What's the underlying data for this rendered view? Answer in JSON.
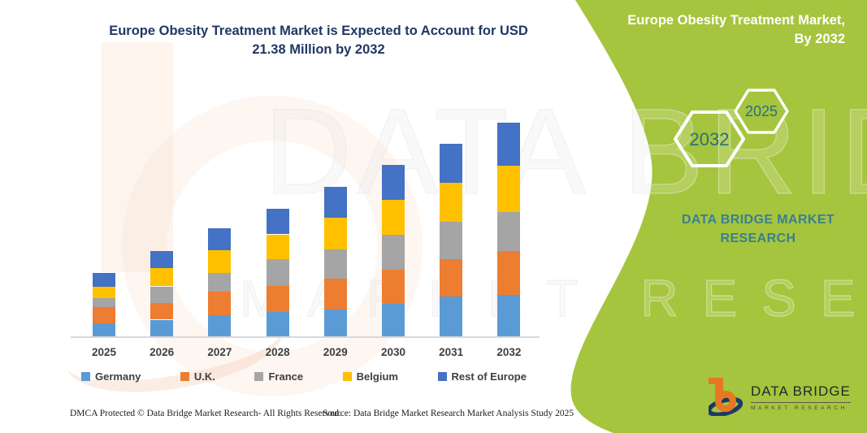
{
  "accent_green": "#a5c53e",
  "chart_title": {
    "line1": "Europe Obesity Treatment Market is Expected to Account for USD",
    "line2": "21.38 Million by 2032"
  },
  "side_panel": {
    "heading_line1": "Europe Obesity Treatment Market,",
    "heading_line2": "By 2032",
    "hexagon_front_label": "2032",
    "hexagon_back_label": "2025",
    "brand_line1": "DATA BRIDGE MARKET",
    "brand_line2": "RESEARCH"
  },
  "logo": {
    "name": "DATA BRIDGE",
    "tagline": "MARKET RESEARCH"
  },
  "watermark": {
    "line1": "DATA BRIDGE",
    "line2": "MARKET RESEARCH"
  },
  "footer": {
    "dmca": "DMCA Protected © Data Bridge Market Research-  All Rights Reserved.",
    "source": "Source: Data Bridge Market Research  Market Analysis Study 2025"
  },
  "chart_data": {
    "type": "bar",
    "stacked": true,
    "title": "Europe Obesity Treatment Market is Expected to Account for USD 21.38 Million by 2032",
    "unit": "USD Million",
    "categories": [
      "2025",
      "2026",
      "2027",
      "2028",
      "2029",
      "2030",
      "2031",
      "2032"
    ],
    "series": [
      {
        "name": "Germany",
        "color": "#5b9bd5",
        "values": [
          1.39,
          1.74,
          2.2,
          2.5,
          2.77,
          3.32,
          4.08,
          4.21
        ]
      },
      {
        "name": "U.K.",
        "color": "#ed7d31",
        "values": [
          1.57,
          1.69,
          2.31,
          2.61,
          3.07,
          3.42,
          3.67,
          4.35
        ]
      },
      {
        "name": "France",
        "color": "#a5a5a5",
        "values": [
          0.92,
          1.63,
          1.9,
          2.63,
          2.91,
          3.45,
          3.75,
          3.94
        ]
      },
      {
        "name": "Belgium",
        "color": "#ffc000",
        "values": [
          1.17,
          1.85,
          2.23,
          2.5,
          3.15,
          3.53,
          3.86,
          4.62
        ]
      },
      {
        "name": "Rest of Europe",
        "color": "#4472c4",
        "values": [
          1.36,
          1.69,
          2.18,
          2.53,
          3.1,
          3.48,
          3.94,
          4.26
        ]
      }
    ],
    "totals": [
      6.41,
      8.6,
      10.82,
      12.77,
      15.0,
      17.2,
      19.3,
      21.38
    ],
    "ylim": [
      0,
      21.38
    ],
    "y_axis_visible": false,
    "gridlines": false,
    "legend_position": "bottom"
  }
}
